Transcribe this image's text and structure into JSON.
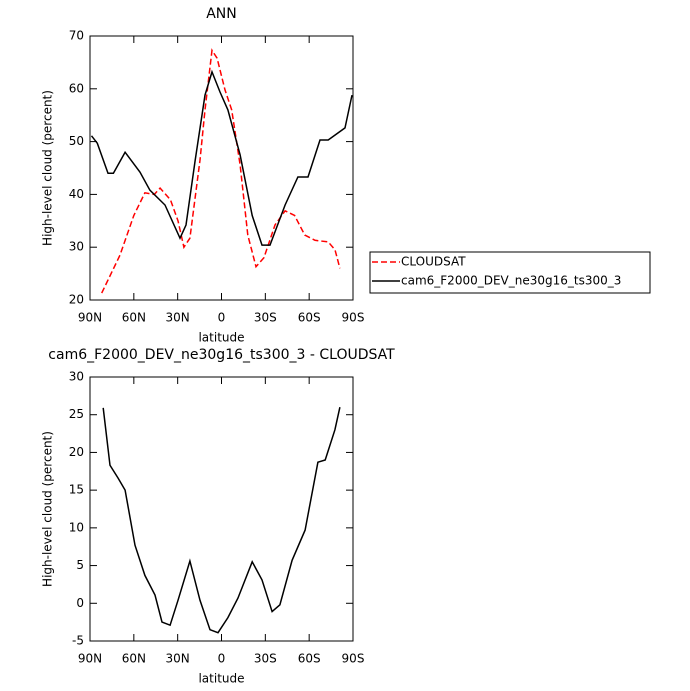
{
  "chart_data": [
    {
      "type": "line",
      "title": "ANN",
      "x_label": "latitude",
      "y_label": "High-level cloud (percent)",
      "xlim": [
        90,
        -90
      ],
      "ylim": [
        20,
        70
      ],
      "xticks": [
        {
          "value": 90,
          "label": "90N"
        },
        {
          "value": 60,
          "label": "60N"
        },
        {
          "value": 30,
          "label": "30N"
        },
        0,
        {
          "value": -30,
          "label": "30S"
        },
        {
          "value": -60,
          "label": "60S"
        },
        {
          "value": -90,
          "label": "90S"
        }
      ],
      "yticks": [
        20,
        30,
        40,
        50,
        60,
        70
      ],
      "legend": "right",
      "series": [
        {
          "name": "CLOUDSAT",
          "color": "#ff0000",
          "line_style": "dashed",
          "x": [
            82,
            69.5,
            60,
            52.4,
            46,
            42,
            35,
            29.8,
            25.7,
            21.6,
            14.7,
            11.3,
            6.5,
            3,
            -2.4,
            -7,
            -12.7,
            -18,
            -23.6,
            -29,
            -36.6,
            -43.5,
            -50,
            -57,
            -64,
            -73,
            -77.7,
            -81
          ],
          "values": [
            21.3,
            28.5,
            36,
            40.3,
            40,
            41.2,
            39,
            35,
            30,
            31.7,
            46.5,
            56,
            67.3,
            65.8,
            59.8,
            56,
            45.6,
            32.3,
            26.3,
            28,
            34.2,
            36.9,
            36,
            32.3,
            31.3,
            31,
            29.5,
            26
          ]
        },
        {
          "name": "cam6_F2000_DEV_ne30g16_ts300_3",
          "color": "#000000",
          "line_style": "solid",
          "x": [
            89,
            85,
            77.7,
            74,
            66,
            55.8,
            49,
            38.7,
            28.4,
            24.3,
            18,
            11.3,
            6.5,
            1,
            -4.4,
            -12.7,
            -21,
            -27.7,
            -33.2,
            -43.5,
            -52.3,
            -59.2,
            -67.4,
            -73,
            -84.5,
            -89.3
          ],
          "values": [
            51.1,
            49.7,
            44,
            44,
            48,
            44.2,
            40.8,
            38,
            31.7,
            34.2,
            46.5,
            58.8,
            63.2,
            59.4,
            56,
            47.5,
            36,
            30.4,
            30.4,
            38,
            43.3,
            43.3,
            50.3,
            50.3,
            52.6,
            58.8
          ]
        }
      ]
    },
    {
      "type": "line",
      "title": "cam6_F2000_DEV_ne30g16_ts300_3 - CLOUDSAT",
      "x_label": "latitude",
      "y_label": "High-level cloud (percent)",
      "xlim": [
        90,
        -90
      ],
      "ylim": [
        -5,
        30
      ],
      "xticks": [
        {
          "value": 90,
          "label": "90N"
        },
        {
          "value": 60,
          "label": "60N"
        },
        {
          "value": 30,
          "label": "30N"
        },
        0,
        {
          "value": -30,
          "label": "30S"
        },
        {
          "value": -60,
          "label": "60S"
        },
        {
          "value": -90,
          "label": "90S"
        }
      ],
      "yticks": [
        -5,
        0,
        5,
        10,
        15,
        20,
        25,
        30
      ],
      "series": [
        {
          "color": "#000000",
          "line_style": "solid",
          "x": [
            81,
            76.3,
            70.8,
            66,
            59.2,
            52.4,
            45.5,
            40.7,
            35.2,
            29.8,
            21.6,
            14.7,
            7.9,
            2.4,
            -4.4,
            -11.3,
            -21,
            -27.7,
            -34.6,
            -40,
            -48.3,
            -57.2,
            -66,
            -71,
            -77.6,
            -81
          ],
          "values": [
            25.9,
            18.3,
            16.6,
            15,
            7.7,
            3.7,
            1.1,
            -2.5,
            -2.9,
            0.4,
            5.6,
            0.4,
            -3.5,
            -3.9,
            -1.9,
            0.7,
            5.5,
            3.1,
            -1.1,
            -0.2,
            5.7,
            9.7,
            18.7,
            19,
            23,
            26
          ]
        }
      ]
    }
  ]
}
